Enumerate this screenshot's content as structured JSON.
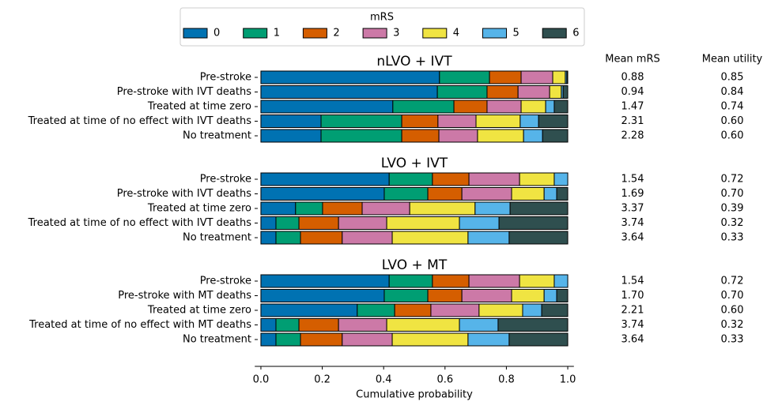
{
  "chart_data": {
    "type": "bar",
    "orientation": "horizontal",
    "stacked": true,
    "legend_title": "mRS",
    "legend": "top",
    "xlabel": "Cumulative probability",
    "xlim": [
      -0.02,
      1.02
    ],
    "xticks": [
      {
        "value": 0,
        "label": "0.0"
      },
      0.2,
      0.4,
      0.6,
      0.8,
      {
        "value": 1,
        "label": "1.0"
      }
    ],
    "columns": [
      "Mean mRS",
      "Mean utility"
    ],
    "series": [
      {
        "name": "0",
        "color": "#0072b2"
      },
      {
        "name": "1",
        "color": "#009e73"
      },
      {
        "name": "2",
        "color": "#d55e00"
      },
      {
        "name": "3",
        "color": "#cc79a7"
      },
      {
        "name": "4",
        "color": "#f0e442"
      },
      {
        "name": "5",
        "color": "#56b4e9"
      },
      {
        "name": "6",
        "color": "#2f4f4f"
      }
    ],
    "panels": [
      {
        "title": "nLVO + IVT",
        "categories": [
          "Pre-stroke",
          "Pre-stroke with IVT deaths",
          "Treated at time zero",
          "Treated at time of no effect with IVT deaths",
          "No treatment"
        ],
        "values": [
          [
            0.582,
            0.163,
            0.103,
            0.103,
            0.041,
            0.005,
            0.003
          ],
          [
            0.575,
            0.162,
            0.101,
            0.103,
            0.038,
            0.006,
            0.015
          ],
          [
            0.43,
            0.199,
            0.108,
            0.111,
            0.08,
            0.028,
            0.044
          ],
          [
            0.196,
            0.263,
            0.118,
            0.124,
            0.144,
            0.06,
            0.095
          ],
          [
            0.196,
            0.263,
            0.121,
            0.126,
            0.15,
            0.062,
            0.082
          ]
        ],
        "mean_mrs": [
          "0.88",
          "0.94",
          "1.47",
          "2.31",
          "2.28"
        ],
        "mean_utility": [
          "0.85",
          "0.84",
          "0.74",
          "0.60",
          "0.60"
        ]
      },
      {
        "title": "LVO + IVT",
        "categories": [
          "Pre-stroke",
          "Pre-stroke with IVT deaths",
          "Treated at time zero",
          "Treated at time of no effect with IVT deaths",
          "No treatment"
        ],
        "values": [
          [
            0.418,
            0.141,
            0.119,
            0.165,
            0.113,
            0.044,
            0
          ],
          [
            0.402,
            0.142,
            0.111,
            0.162,
            0.106,
            0.041,
            0.036
          ],
          [
            0.113,
            0.088,
            0.129,
            0.155,
            0.213,
            0.114,
            0.188
          ],
          [
            0.049,
            0.075,
            0.129,
            0.157,
            0.237,
            0.129,
            0.224
          ],
          [
            0.049,
            0.08,
            0.136,
            0.163,
            0.247,
            0.134,
            0.191
          ]
        ],
        "mean_mrs": [
          "1.54",
          "1.69",
          "3.37",
          "3.74",
          "3.64"
        ],
        "mean_utility": [
          "0.72",
          "0.70",
          "0.39",
          "0.32",
          "0.33"
        ]
      },
      {
        "title": "LVO + MT",
        "categories": [
          "Pre-stroke",
          "Pre-stroke with MT deaths",
          "Treated at time zero",
          "Treated at time of no effect with MT deaths",
          "No treatment"
        ],
        "values": [
          [
            0.418,
            0.141,
            0.119,
            0.165,
            0.113,
            0.044,
            0
          ],
          [
            0.402,
            0.142,
            0.111,
            0.162,
            0.106,
            0.041,
            0.036
          ],
          [
            0.314,
            0.122,
            0.118,
            0.157,
            0.142,
            0.062,
            0.085
          ],
          [
            0.049,
            0.075,
            0.129,
            0.157,
            0.237,
            0.126,
            0.227
          ],
          [
            0.049,
            0.08,
            0.136,
            0.163,
            0.247,
            0.134,
            0.191
          ]
        ],
        "mean_mrs": [
          "1.54",
          "1.70",
          "2.21",
          "3.74",
          "3.64"
        ],
        "mean_utility": [
          "0.72",
          "0.70",
          "0.60",
          "0.32",
          "0.33"
        ]
      }
    ]
  }
}
